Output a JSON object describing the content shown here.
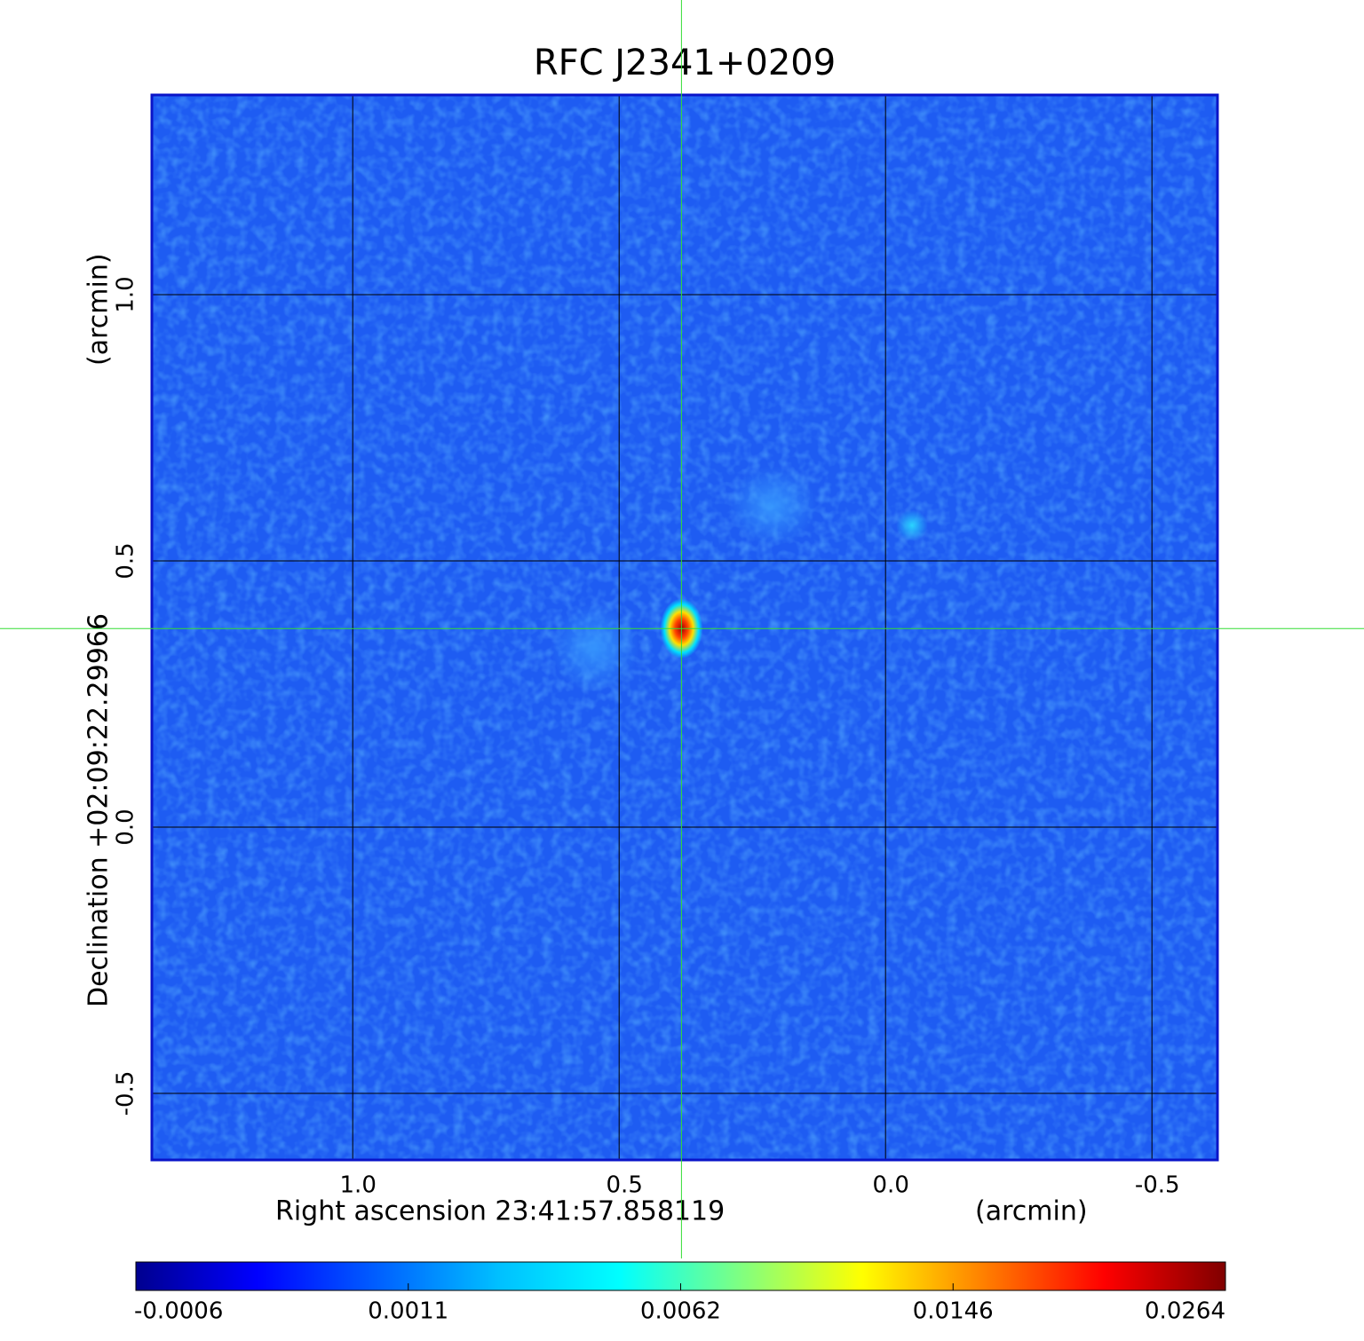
{
  "chart_data": {
    "type": "image",
    "title": "RFC J2341+0209",
    "title_color": "#0a14c8",
    "xlabel": "Right ascension  23:41:57.858119",
    "xunit": "(arcmin)",
    "ylabel": "Declination  +02:09:22.29966",
    "yunit": "(arcmin)",
    "xlim": [
      1.377,
      -0.623
    ],
    "ylim": [
      -0.625,
      1.375
    ],
    "xticks": [
      {
        "value": 1.0,
        "label": "1.0"
      },
      0.5,
      {
        "value": 0.0,
        "label": "0.0"
      },
      -0.5
    ],
    "yticks": [
      -0.5,
      {
        "value": 0.0,
        "label": "0.0"
      },
      0.5,
      {
        "value": 1.0,
        "label": "1.0"
      }
    ],
    "grid": true,
    "crosshair": [
      0.383,
      0.373
    ],
    "crosshair_color": "#33dd33",
    "colorbar": {
      "ticks": [
        {
          "value": -0.0006,
          "label": "-0.0006"
        },
        0.0011,
        0.0062,
        0.0146,
        0.0264
      ],
      "colors": [
        "#00008f",
        "#0000ff",
        "#0060ff",
        "#00c0ff",
        "#00ffff",
        "#80ff80",
        "#ffff00",
        "#ff8000",
        "#ff0000",
        "#800000"
      ]
    }
  }
}
